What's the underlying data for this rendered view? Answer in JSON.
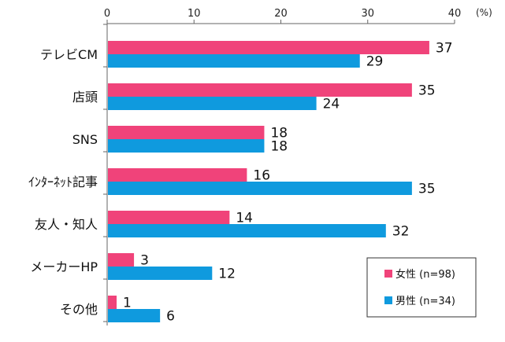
{
  "chart_data": {
    "type": "bar",
    "orientation": "horizontal",
    "unit_label": "(%)",
    "xlim": [
      0,
      40
    ],
    "ticks": [
      0,
      10,
      20,
      30,
      40
    ],
    "grid": false,
    "legend_position": "bottom-right",
    "categories": [
      "テレビCM",
      "店頭",
      "SNS",
      "ｲﾝﾀｰﾈｯﾄ記事",
      "友人・知人",
      "メーカーHP",
      "その他"
    ],
    "series": [
      {
        "name": "女性 (n=98)",
        "color": "#f0437a",
        "values": [
          37,
          35,
          18,
          16,
          14,
          3,
          1
        ]
      },
      {
        "name": "男性 (n=34)",
        "color": "#0f9ade",
        "values": [
          29,
          24,
          18,
          35,
          32,
          12,
          6
        ]
      }
    ]
  }
}
